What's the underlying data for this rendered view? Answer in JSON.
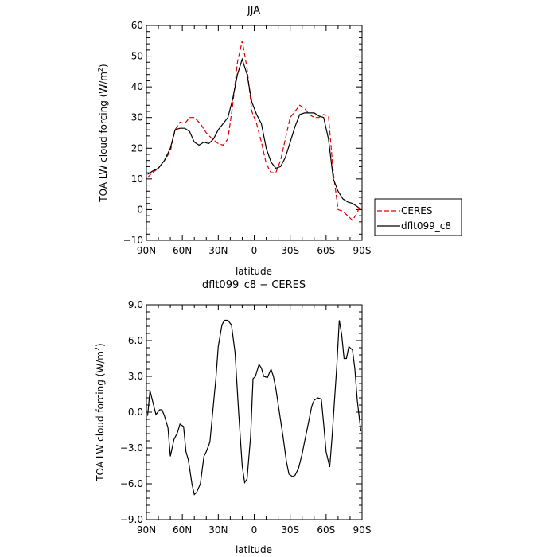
{
  "chart_data": [
    {
      "type": "line",
      "title": "JJA",
      "xlabel": "latitude",
      "ylabel": "TOA LW cloud forcing (W/m²)",
      "ylabel_main": "TOA LW cloud forcing (W/m",
      "ylabel_sup": "2",
      "ylabel_end": ")",
      "xlim": [
        90,
        -90
      ],
      "ylim": [
        -10,
        60
      ],
      "x_tick_values": [
        90,
        60,
        30,
        0,
        -30,
        -60,
        -90
      ],
      "x_tick_labels": [
        "90N",
        "60N",
        "30N",
        "0",
        "30S",
        "60S",
        "90S"
      ],
      "y_ticks": [
        -10,
        0,
        10,
        20,
        30,
        40,
        50,
        60
      ],
      "y_tick_labels": [
        "−10",
        "0",
        "10",
        "20",
        "30",
        "40",
        "50",
        "60"
      ],
      "legend": {
        "position": "right"
      },
      "series": [
        {
          "name": "CERES",
          "color": "#e00000",
          "dashed": true,
          "x": [
            89,
            85,
            80,
            75,
            70,
            66,
            62,
            58,
            54,
            50,
            45,
            40,
            35,
            30,
            26,
            22,
            18,
            14,
            10,
            6,
            2,
            -2,
            -6,
            -10,
            -14,
            -18,
            -22,
            -26,
            -30,
            -34,
            -38,
            -42,
            -46,
            -50,
            -54,
            -58,
            -62,
            -66,
            -70,
            -74,
            -78,
            -82,
            -86,
            -89
          ],
          "y": [
            10.5,
            12,
            13.5,
            16,
            19,
            26,
            28.5,
            28,
            30,
            30,
            28,
            25,
            23,
            21.5,
            21,
            23,
            34,
            48,
            55,
            46,
            32,
            28,
            22,
            15,
            12,
            12,
            16,
            23,
            30,
            32,
            34,
            33,
            31,
            30,
            30,
            31,
            30.5,
            12,
            0,
            -0.5,
            -2,
            -3.5,
            -1,
            2
          ]
        },
        {
          "name": "dflt099_c8",
          "color": "#000000",
          "dashed": false,
          "x": [
            89,
            85,
            80,
            75,
            70,
            66,
            62,
            58,
            54,
            50,
            46,
            42,
            38,
            34,
            30,
            26,
            22,
            18,
            14,
            10,
            6,
            2,
            -2,
            -6,
            -10,
            -14,
            -18,
            -22,
            -26,
            -30,
            -34,
            -38,
            -42,
            -46,
            -50,
            -54,
            -58,
            -62,
            -66,
            -70,
            -74,
            -78,
            -82,
            -86,
            -89
          ],
          "y": [
            11.5,
            12.5,
            13.5,
            16,
            20,
            26,
            26.5,
            26.5,
            25.5,
            22,
            21,
            22,
            21.5,
            23,
            26,
            28,
            30,
            36,
            44,
            49,
            44,
            35,
            31,
            28,
            20,
            15.5,
            13.5,
            14,
            17,
            22,
            27,
            31,
            31.5,
            31.5,
            31.5,
            30.5,
            30,
            23,
            10,
            6,
            3.5,
            2.5,
            2,
            1,
            0
          ]
        }
      ]
    },
    {
      "type": "line",
      "title": "dflt099_c8 − CERES",
      "xlabel": "latitude",
      "ylabel": "TOA LW cloud forcing (W/m²)",
      "ylabel_main": "TOA LW cloud forcing (W/m",
      "ylabel_sup": "2",
      "ylabel_end": ")",
      "xlim": [
        90,
        -90
      ],
      "ylim": [
        -9,
        9
      ],
      "x_tick_values": [
        90,
        60,
        30,
        0,
        -30,
        -60,
        -90
      ],
      "x_tick_labels": [
        "90N",
        "60N",
        "30N",
        "0",
        "30S",
        "60S",
        "90S"
      ],
      "y_ticks": [
        -9,
        -6,
        -3,
        0,
        3,
        6,
        9
      ],
      "y_tick_labels": [
        "−9.0",
        "−6.0",
        "−3.0",
        "0.0",
        "3.0",
        "6.0",
        "9.0"
      ],
      "series": [
        {
          "name": "",
          "color": "#000000",
          "dashed": false,
          "x": [
            89,
            87,
            84,
            82,
            79,
            77,
            75,
            72,
            70,
            67,
            64,
            62,
            59,
            57,
            55,
            52,
            50,
            48,
            45,
            42,
            40,
            37,
            34,
            32,
            30,
            27,
            25,
            22,
            19,
            16,
            13,
            10,
            8,
            6,
            3,
            1,
            -1,
            -4,
            -6,
            -8,
            -11,
            -14,
            -16,
            -18,
            -21,
            -24,
            -27,
            -29,
            -32,
            -34,
            -37,
            -40,
            -42,
            -45,
            -48,
            -50,
            -53,
            -56,
            -58,
            -60,
            -63,
            -65,
            -67,
            -69,
            -71,
            -73,
            -75,
            -77,
            -79,
            -82,
            -84,
            -86,
            -89
          ],
          "y": [
            -0.3,
            1.8,
            0.6,
            -0.2,
            0.2,
            0.2,
            -0.3,
            -1.3,
            -3.7,
            -2.3,
            -1.7,
            -1,
            -1.2,
            -3.3,
            -4,
            -6,
            -6.9,
            -6.7,
            -6,
            -3.7,
            -3.3,
            -2.5,
            0.7,
            2.8,
            5.5,
            7.3,
            7.7,
            7.7,
            7.3,
            5,
            0,
            -4.5,
            -5.9,
            -5.6,
            -2,
            2.8,
            3,
            4,
            3.7,
            3,
            2.9,
            3.6,
            3,
            2,
            0,
            -2,
            -4.2,
            -5.2,
            -5.4,
            -5.3,
            -4.7,
            -3.5,
            -2.5,
            -1,
            0.5,
            1,
            1.2,
            1.1,
            -1,
            -3.3,
            -4.6,
            -2,
            1,
            4,
            7.7,
            6.5,
            4.5,
            4.5,
            5.5,
            5.2,
            3.6,
            1,
            -1.6
          ]
        }
      ]
    }
  ]
}
